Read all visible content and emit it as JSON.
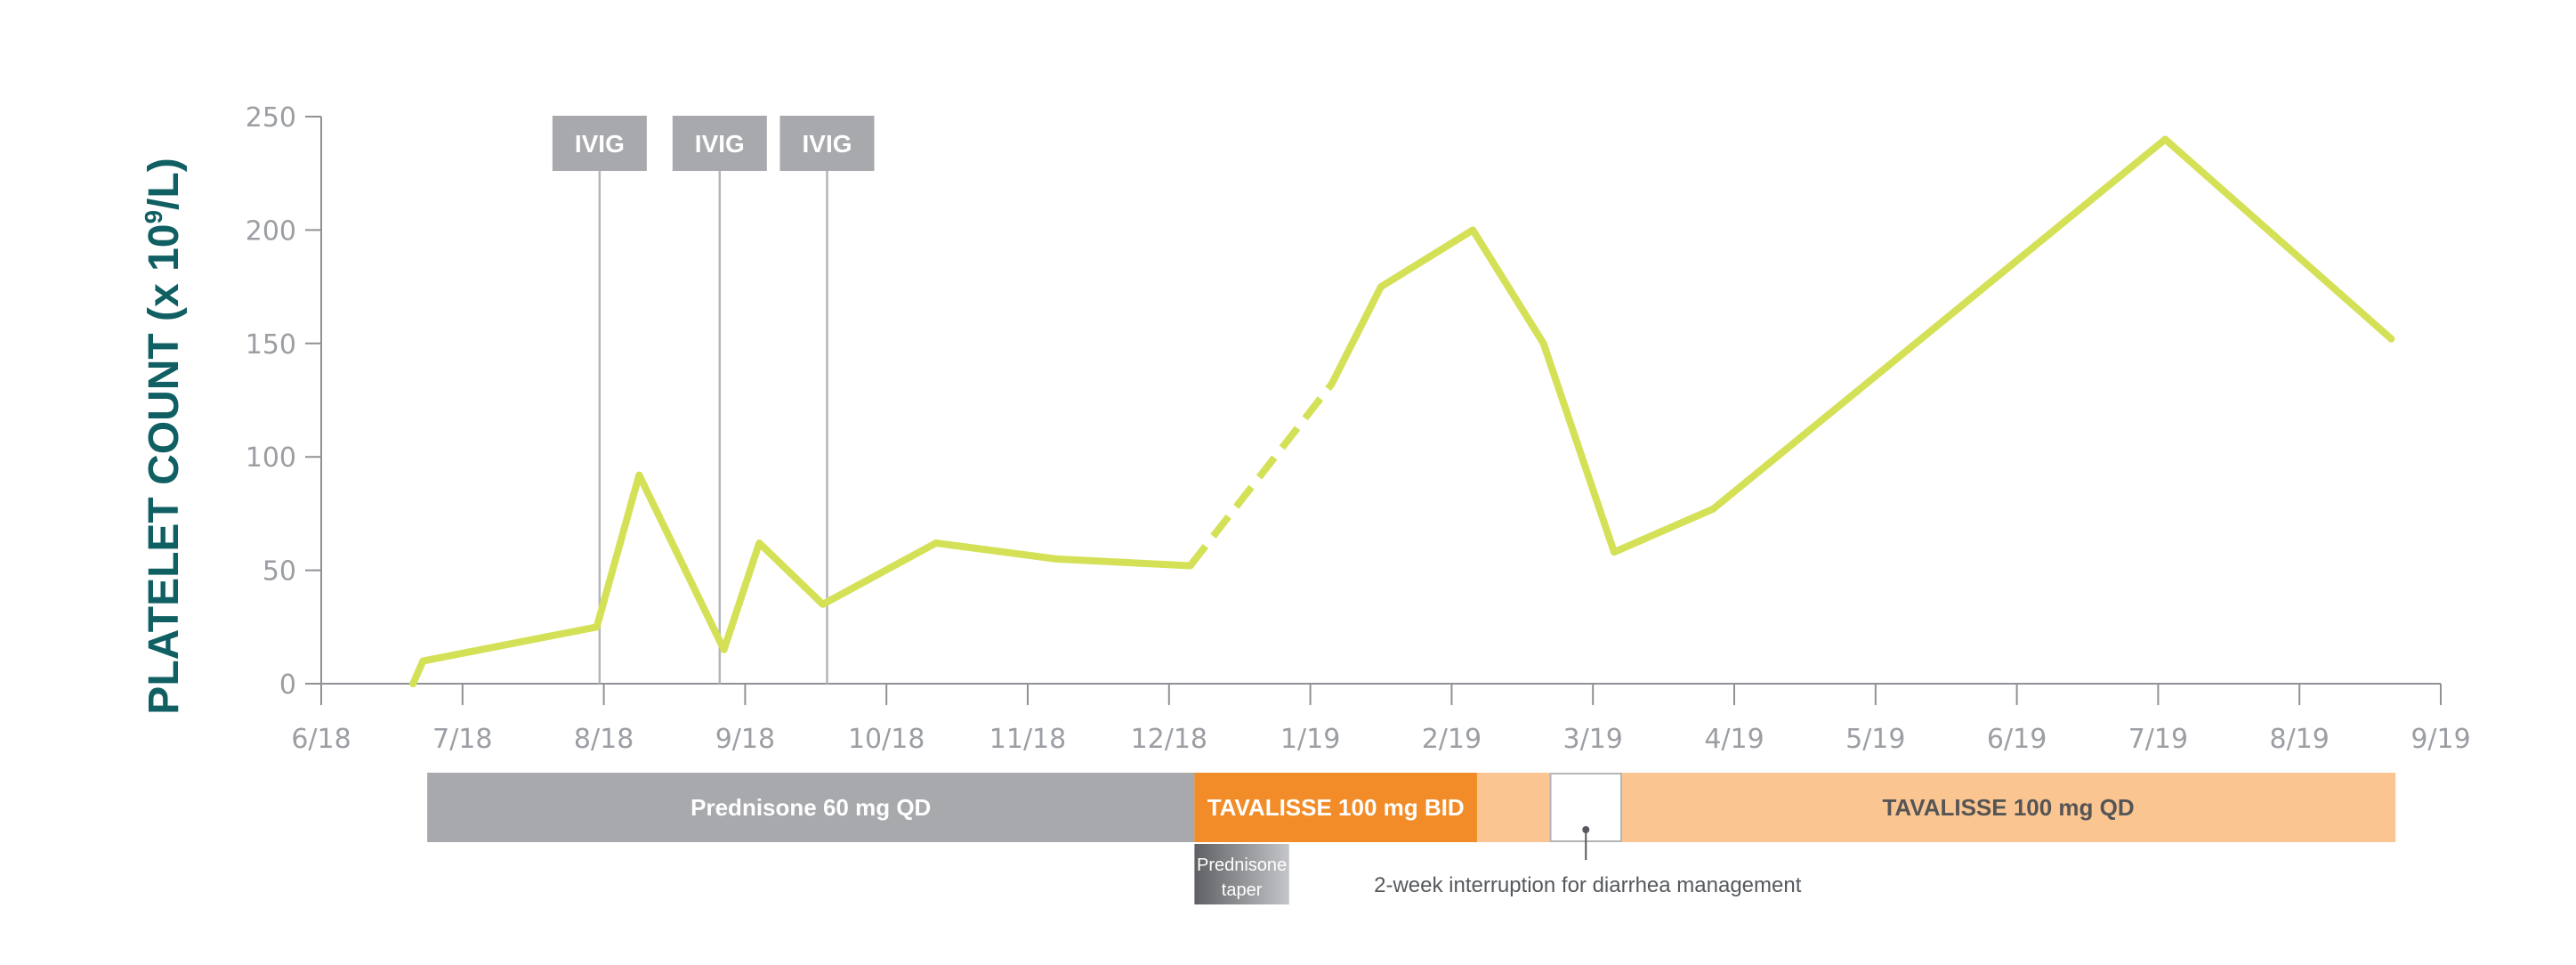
{
  "chart_data": {
    "type": "line",
    "ylabel": "PLATELET COUNT (x 10",
    "ylabel_sup": "9",
    "ylabel_suffix": "/L)",
    "ylim": [
      0,
      250
    ],
    "yticks": [
      0,
      50,
      100,
      150,
      200,
      250
    ],
    "xlim": [
      0,
      15
    ],
    "xticks": [
      "6/18",
      "7/18",
      "8/18",
      "9/18",
      "10/18",
      "11/18",
      "12/18",
      "1/19",
      "2/19",
      "3/19",
      "4/19",
      "5/19",
      "6/19",
      "7/19",
      "8/19",
      "9/19"
    ],
    "grid": false,
    "series": [
      {
        "color": "#d4e157",
        "points": [
          {
            "x": 0.65,
            "y": 0
          },
          {
            "x": 0.72,
            "y": 10
          },
          {
            "x": 1.95,
            "y": 25
          },
          {
            "x": 2.25,
            "y": 92
          },
          {
            "x": 2.85,
            "y": 15
          },
          {
            "x": 3.1,
            "y": 62
          },
          {
            "x": 3.55,
            "y": 35
          },
          {
            "x": 4.35,
            "y": 62
          },
          {
            "x": 5.2,
            "y": 55
          },
          {
            "x": 6.15,
            "y": 52
          },
          {
            "x": 7.15,
            "y": 132
          },
          {
            "x": 7.5,
            "y": 175
          },
          {
            "x": 8.15,
            "y": 200
          },
          {
            "x": 8.65,
            "y": 150
          },
          {
            "x": 9.15,
            "y": 58
          },
          {
            "x": 9.85,
            "y": 77
          },
          {
            "x": 13.05,
            "y": 240
          },
          {
            "x": 14.65,
            "y": 152
          }
        ],
        "dashed_segment": [
          6.15,
          7.15
        ]
      }
    ],
    "markers": [
      {
        "label": "IVIG",
        "x": 1.97
      },
      {
        "label": "IVIG",
        "x": 2.82
      },
      {
        "label": "IVIG",
        "x": 3.58
      }
    ],
    "treatments": [
      {
        "label": "Prednisone 60 mg QD",
        "start": 0.75,
        "end": 6.18,
        "color": "#a7a9ac",
        "text_color": "#ffffff"
      },
      {
        "label": "TAVALISSE 100 mg BID",
        "start": 6.18,
        "end": 8.18,
        "color": "#f28c28",
        "text_color": "#ffffff"
      },
      {
        "label": "TAVALISSE 100 mg QD",
        "start": 8.18,
        "end": 14.68,
        "color": "#fbc592",
        "text_color": "#555555"
      }
    ],
    "taper": {
      "label_line1": "Prednisone",
      "label_line2": "taper",
      "start": 6.18,
      "end": 6.85
    },
    "interruption": {
      "label": "2-week interruption for diarrhea management",
      "start": 8.7,
      "end": 9.2
    }
  }
}
